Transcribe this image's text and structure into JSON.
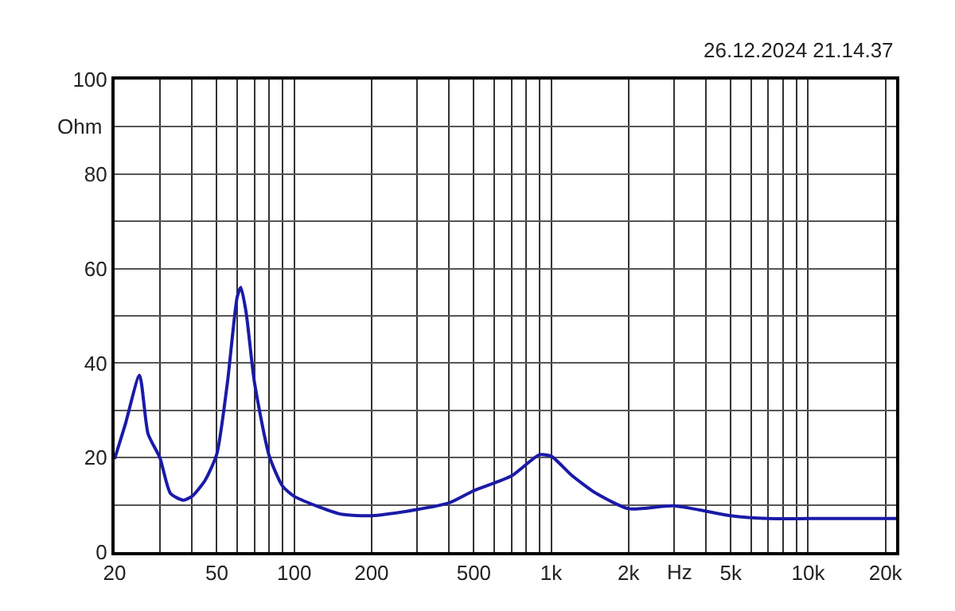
{
  "chart_data": {
    "type": "line",
    "xlabel": "Hz",
    "ylabel": "Ohm",
    "log": "x",
    "grid": true,
    "marker": "none",
    "line_style": "solid",
    "annotations": [
      "26.12.2024 21.14.37"
    ],
    "xlim": [
      20,
      22000
    ],
    "ylim": [
      0,
      100
    ],
    "xticks": [
      20,
      {
        "value": 30,
        "label": null
      },
      {
        "value": 40,
        "label": null
      },
      50,
      {
        "value": 60,
        "label": null
      },
      {
        "value": 70,
        "label": null
      },
      {
        "value": 80,
        "label": null
      },
      {
        "value": 90,
        "label": null
      },
      100,
      200,
      {
        "value": 300,
        "label": null
      },
      {
        "value": 400,
        "label": null
      },
      500,
      {
        "value": 600,
        "label": null
      },
      {
        "value": 700,
        "label": null
      },
      {
        "value": 800,
        "label": null
      },
      {
        "value": 900,
        "label": null
      },
      {
        "value": 1000,
        "label": "1k"
      },
      {
        "value": 2000,
        "label": "2k"
      },
      {
        "value": 3000,
        "label": null
      },
      {
        "value": 4000,
        "label": null
      },
      {
        "value": 5000,
        "label": "5k"
      },
      {
        "value": 6000,
        "label": null
      },
      {
        "value": 7000,
        "label": null
      },
      {
        "value": 8000,
        "label": null
      },
      {
        "value": 9000,
        "label": null
      },
      {
        "value": 10000,
        "label": "10k"
      },
      {
        "value": 20000,
        "label": "20k"
      }
    ],
    "yticks": [
      0,
      {
        "value": 10,
        "label": null
      },
      20,
      {
        "value": 30,
        "label": null
      },
      40,
      {
        "value": 50,
        "label": null
      },
      60,
      {
        "value": 70,
        "label": null
      },
      80,
      {
        "value": 90,
        "label": null
      },
      100
    ],
    "x": [
      20,
      22,
      25,
      27,
      30,
      33,
      37,
      40,
      45,
      50,
      55,
      60,
      62,
      65,
      70,
      80,
      90,
      100,
      150,
      200,
      300,
      400,
      500,
      700,
      900,
      1000,
      1200,
      1500,
      2000,
      3000,
      5000,
      7000,
      10000,
      22000
    ],
    "series": [
      {
        "color": "#1a1aa8",
        "values": [
          19.7,
          27,
          37.4,
          25,
          20,
          12.4,
          11,
          11.8,
          15.2,
          20.8,
          36,
          54,
          56,
          50.7,
          36,
          20.3,
          14,
          11.8,
          8.1,
          7.7,
          9,
          10.4,
          13,
          16.1,
          20.6,
          20.3,
          16.3,
          12.4,
          9.2,
          9.8,
          7.7,
          7.1,
          7.1,
          7.1
        ]
      }
    ]
  }
}
